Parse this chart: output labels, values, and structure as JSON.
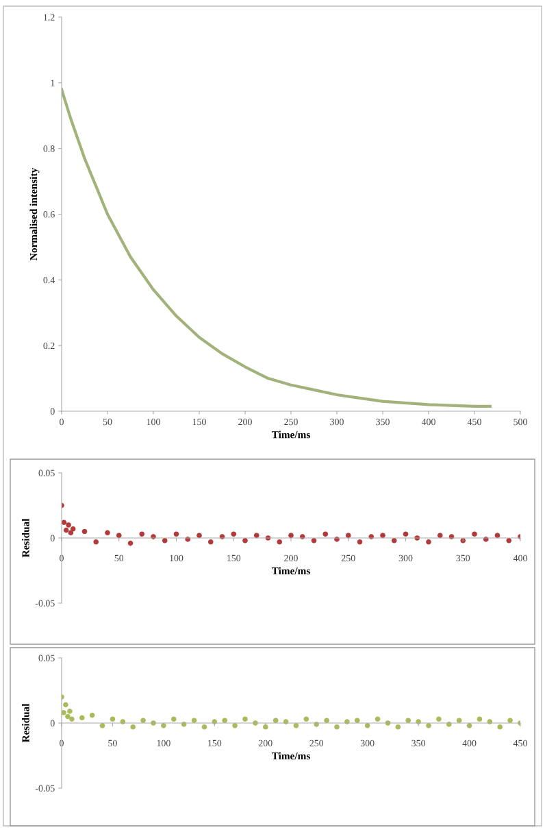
{
  "chart_data": [
    {
      "type": "line",
      "xlabel": "Time/ms",
      "ylabel": "Normalised intensity",
      "x": [
        0,
        10,
        25,
        50,
        75,
        100,
        125,
        150,
        175,
        200,
        225,
        250,
        275,
        300,
        350,
        400,
        450,
        467
      ],
      "series": [
        {
          "color": "#a3b27a",
          "values": [
            0.98,
            0.89,
            0.77,
            0.6,
            0.47,
            0.37,
            0.29,
            0.225,
            0.175,
            0.135,
            0.1,
            0.08,
            0.065,
            0.05,
            0.03,
            0.02,
            0.015,
            0.015
          ]
        }
      ],
      "xlim": [
        0,
        500
      ],
      "xticks": [
        0,
        50,
        100,
        150,
        200,
        250,
        300,
        350,
        400,
        450,
        500
      ],
      "ylim": [
        0,
        1.2
      ],
      "yticks": [
        0,
        0.2,
        0.4,
        0.6,
        0.8,
        1,
        1.2
      ],
      "marker": "none",
      "grid": false
    },
    {
      "type": "scatter",
      "xlabel": "Time/ms",
      "ylabel": "Residual",
      "x": [
        0,
        2,
        4,
        6,
        8,
        10,
        20,
        30,
        40,
        50,
        60,
        70,
        80,
        90,
        100,
        110,
        120,
        130,
        140,
        150,
        160,
        170,
        180,
        190,
        200,
        210,
        220,
        230,
        240,
        250,
        260,
        270,
        280,
        290,
        300,
        310,
        320,
        330,
        340,
        350,
        360,
        370,
        380,
        390,
        400
      ],
      "series": [
        {
          "color": "#b33a3a",
          "values": [
            0.025,
            0.012,
            0.006,
            0.01,
            0.004,
            0.007,
            0.005,
            -0.003,
            0.004,
            0.002,
            -0.004,
            0.003,
            0.001,
            -0.002,
            0.003,
            -0.001,
            0.002,
            -0.003,
            0.001,
            0.003,
            -0.002,
            0.002,
            0,
            -0.003,
            0.002,
            0.001,
            -0.002,
            0.003,
            -0.001,
            0.002,
            -0.003,
            0.001,
            0.002,
            -0.002,
            0.003,
            0,
            -0.003,
            0.002,
            0.001,
            -0.002,
            0.003,
            -0.001,
            0.002,
            -0.002,
            0.001
          ]
        }
      ],
      "xlim": [
        0,
        400
      ],
      "xticks": [
        0,
        50,
        100,
        150,
        200,
        250,
        300,
        350,
        400
      ],
      "ylim": [
        -0.05,
        0.05
      ],
      "yticks": [
        -0.05,
        0,
        0.05
      ],
      "marker": "circle",
      "grid": false
    },
    {
      "type": "scatter",
      "xlabel": "Time/ms",
      "ylabel": "Residual",
      "x": [
        0,
        2,
        4,
        6,
        8,
        10,
        20,
        30,
        40,
        50,
        60,
        70,
        80,
        90,
        100,
        110,
        120,
        130,
        140,
        150,
        160,
        170,
        180,
        190,
        200,
        210,
        220,
        230,
        240,
        250,
        260,
        270,
        280,
        290,
        300,
        310,
        320,
        330,
        340,
        350,
        360,
        370,
        380,
        390,
        400,
        410,
        420,
        430,
        440,
        450
      ],
      "series": [
        {
          "color": "#a9bc5c",
          "values": [
            0.02,
            0.008,
            0.014,
            0.005,
            0.009,
            0.003,
            0.004,
            0.006,
            -0.002,
            0.003,
            0.001,
            -0.003,
            0.002,
            0,
            -0.002,
            0.003,
            -0.001,
            0.002,
            -0.003,
            0.001,
            0.002,
            -0.002,
            0.003,
            0,
            -0.003,
            0.002,
            0.001,
            -0.002,
            0.003,
            -0.001,
            0.002,
            -0.003,
            0.001,
            0.002,
            -0.002,
            0.003,
            0,
            -0.003,
            0.002,
            0.001,
            -0.002,
            0.003,
            -0.001,
            0.002,
            -0.002,
            0.003,
            0.001,
            -0.003,
            0.002,
            0
          ]
        }
      ],
      "xlim": [
        0,
        450
      ],
      "xticks": [
        0,
        50,
        100,
        150,
        200,
        250,
        300,
        350,
        400,
        450
      ],
      "ylim": [
        -0.05,
        0.05
      ],
      "yticks": [
        -0.05,
        0,
        0.05
      ],
      "marker": "circle",
      "grid": false
    }
  ]
}
